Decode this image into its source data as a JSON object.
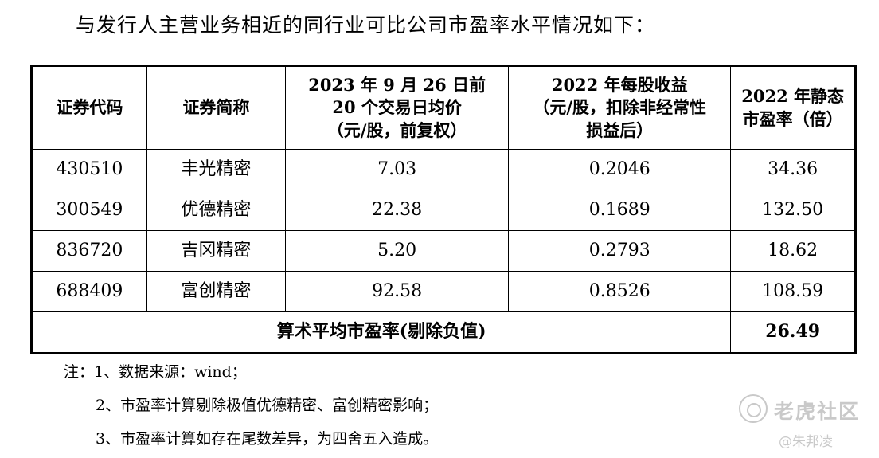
{
  "intro": "与发行人主营业务相近的同行业可比公司市盈率水平情况如下：",
  "table": {
    "headers": [
      "证券代码",
      "证券简称",
      "2023 年 9 月 26 日前\n20 个交易日均价\n（元/股，前复权）",
      "2022 年每股收益\n（元/股，扣除非经常性\n损益后）",
      "2022 年静态\n市盈率（倍）"
    ],
    "rows": [
      [
        "430510",
        "丰光精密",
        "7.03",
        "0.2046",
        "34.36"
      ],
      [
        "300549",
        "优德精密",
        "22.38",
        "0.1689",
        "132.50"
      ],
      [
        "836720",
        "吉冈精密",
        "5.20",
        "0.2793",
        "18.62"
      ],
      [
        "688409",
        "富创精密",
        "92.58",
        "0.8526",
        "108.59"
      ]
    ],
    "summary": {
      "label": "算术平均市盈率(剔除负值)",
      "value": "26.49"
    }
  },
  "notes": [
    "注：1、数据来源：wind；",
    "2、市盈率计算剔除极值优德精密、富创精密影响；",
    "3、市盈率计算如存在尾数差异，为四舍五入造成。"
  ],
  "watermark": {
    "brand": "老虎社区",
    "author": "@朱邦凌",
    "logo_icon": "tiger-community-logo"
  }
}
